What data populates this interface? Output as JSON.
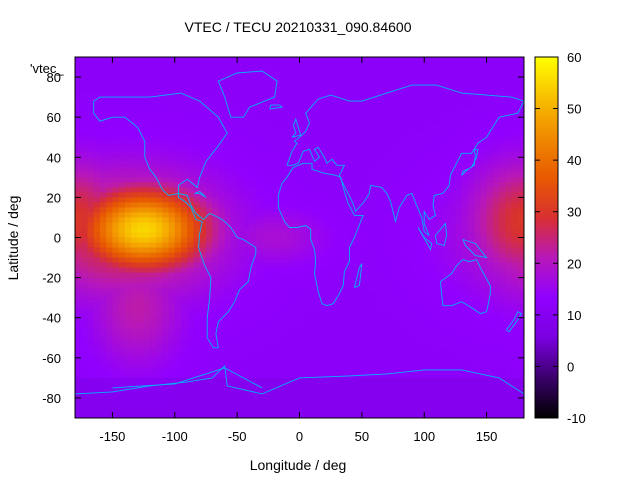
{
  "chart_data": {
    "type": "heatmap",
    "title": "VTEC / TECU 20210331_090.84600",
    "xlabel": "Longitude / deg",
    "ylabel": "Latitude / deg",
    "series_label": "'vtec_",
    "xlim": [
      -180,
      180
    ],
    "ylim": [
      -90,
      90
    ],
    "xticks": [
      -150,
      -100,
      -50,
      0,
      50,
      100,
      150
    ],
    "yticks": [
      -80,
      -60,
      -40,
      -20,
      0,
      20,
      40,
      60,
      80
    ],
    "colorbar": {
      "min": -10,
      "max": 60,
      "ticks": [
        -10,
        0,
        10,
        20,
        30,
        40,
        50,
        60
      ],
      "palette": [
        "#000000",
        "#3a006a",
        "#7a00e0",
        "#9000ff",
        "#b818b8",
        "#d83030",
        "#e85a00",
        "#f08a00",
        "#f8c000",
        "#ffff00"
      ]
    },
    "background_value": 12,
    "features": [
      {
        "name": "equatorial-anomaly-pacific",
        "lon": -125,
        "lat": 4,
        "peak": 55,
        "lon_spread": 35,
        "lat_spread": 14
      },
      {
        "name": "equatorial-band-pacific",
        "lon": -140,
        "lat": 2,
        "peak": 30,
        "lon_spread": 55,
        "lat_spread": 22
      },
      {
        "name": "southern-extension",
        "lon": -130,
        "lat": -35,
        "peak": 22,
        "lon_spread": 25,
        "lat_spread": 20
      },
      {
        "name": "equatorial-band-west-pacific",
        "lon": 180,
        "lat": 8,
        "peak": 30,
        "lon_spread": 30,
        "lat_spread": 20
      },
      {
        "name": "atlantic-enhancement",
        "lon": -20,
        "lat": 0,
        "peak": 18,
        "lon_spread": 30,
        "lat_spread": 10
      }
    ]
  }
}
